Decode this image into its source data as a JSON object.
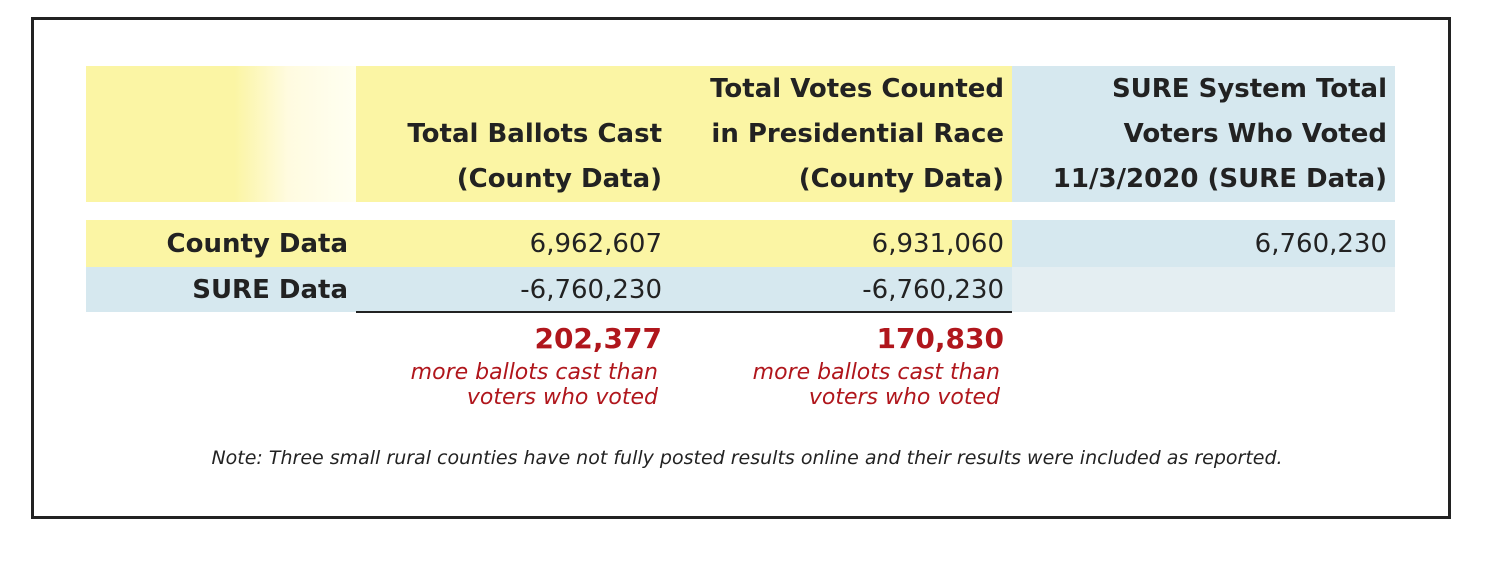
{
  "table": {
    "columns": [
      {
        "lines": [
          "Total Ballots Cast",
          "(County Data)"
        ]
      },
      {
        "lines": [
          "Total Votes Counted",
          "in Presidential Race",
          "(County Data)"
        ]
      },
      {
        "lines": [
          "SURE System Total",
          "Voters Who Voted",
          "11/3/2020 (SURE Data)"
        ]
      }
    ],
    "rows": [
      {
        "label": "County Data",
        "values": [
          "6,962,607",
          "6,931,060",
          "6,760,230"
        ]
      },
      {
        "label": "SURE Data",
        "values": [
          "-6,760,230",
          "-6,760,230",
          ""
        ]
      }
    ],
    "differences": [
      {
        "value": "202,377",
        "lines": [
          "more ballots cast than",
          "voters who voted"
        ]
      },
      {
        "value": "170,830",
        "lines": [
          "more ballots cast than",
          "voters who voted"
        ]
      }
    ]
  },
  "note": "Note: Three small rural counties have not fully posted results online and their results were included as reported.",
  "colors": {
    "yellow": "#fbf5a4",
    "blue": "#d6e8ef",
    "red": "#b0161c"
  }
}
